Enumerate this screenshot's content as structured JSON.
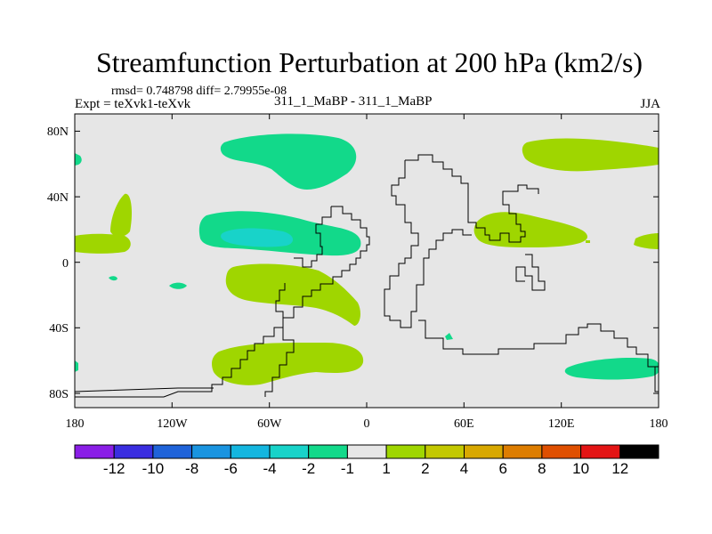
{
  "chart_data": {
    "type": "contour-map",
    "title": "Streamfunction Perturbation at 200 hPa (km2/s)",
    "stats_line": "rmsd= 0.748798 diff= 2.79955e-08",
    "left_subtitle": "Expt = teXvk1-teXvk",
    "center_subtitle": "311_1_MaBP - 311_1_MaBP",
    "right_subtitle": "JJA",
    "x_ticks": [
      "180",
      "120W",
      "60W",
      "0",
      "60E",
      "120E",
      "180"
    ],
    "y_ticks": [
      "80N",
      "40N",
      "0",
      "40S",
      "80S"
    ],
    "xlim": [
      -180,
      180
    ],
    "ylim": [
      -90,
      90
    ],
    "colorbar": {
      "levels": [
        "-12",
        "-10",
        "-8",
        "-6",
        "-4",
        "-2",
        "-1",
        "1",
        "2",
        "4",
        "6",
        "8",
        "10",
        "12"
      ],
      "colors": [
        "#8a1ee6",
        "#3a2ee0",
        "#1f63d9",
        "#1a94e0",
        "#14b6df",
        "#18d3c9",
        "#12d98a",
        "#e6e6e6",
        "#9fd600",
        "#c3c800",
        "#d8a800",
        "#dd7d00",
        "#df4f00",
        "#e31414"
      ]
    },
    "shaded_regions": [
      {
        "class": "-1..-2",
        "color": "#12d98a",
        "lon_center": -116,
        "lat_center": 70
      },
      {
        "class": "-1..-2",
        "color": "#12d98a",
        "lon_center": -113,
        "lat_center": 17
      },
      {
        "class": "-2..-4",
        "color": "#18d3c9",
        "lon_center": -110,
        "lat_center": 15
      },
      {
        "class": "-1..-2",
        "color": "#12d98a",
        "lon_center": 138,
        "lat_center": -64
      },
      {
        "class": "-1..-2",
        "color": "#12d98a",
        "lon_center": -175,
        "lat_center": 10
      },
      {
        "class": "1..2",
        "color": "#9fd600",
        "lon_center": 110,
        "lat_center": 70
      },
      {
        "class": "1..2",
        "color": "#9fd600",
        "lon_center": 75,
        "lat_center": 18
      },
      {
        "class": "1..2",
        "color": "#9fd600",
        "lon_center": -65,
        "lat_center": -20
      },
      {
        "class": "1..2",
        "color": "#9fd600",
        "lon_center": -85,
        "lat_center": -62
      },
      {
        "class": "1..2",
        "color": "#9fd600",
        "lon_center": -155,
        "lat_center": 15
      }
    ]
  }
}
